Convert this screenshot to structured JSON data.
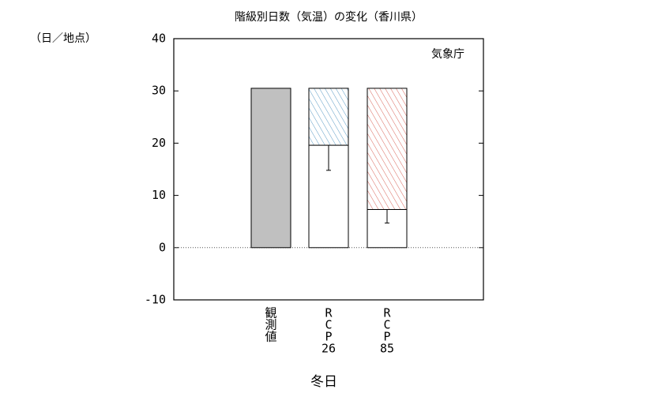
{
  "chart_data": {
    "type": "bar",
    "title": "階級別日数（気温）の変化（香川県）",
    "y_unit": "（日／地点）",
    "source": "気象庁",
    "xlabel": "冬日",
    "categories": [
      [
        "観",
        "測",
        "値"
      ],
      [
        "R",
        "C",
        "P",
        "26"
      ],
      [
        "R",
        "C",
        "P",
        "85"
      ]
    ],
    "series": [
      {
        "color": "#c0c0c0",
        "values": [
          30.5,
          null,
          null
        ]
      },
      {
        "color": "#ffffff",
        "values": [
          null,
          19.6,
          7.3
        ],
        "errors": [
          null,
          4.8,
          2.6
        ]
      },
      {
        "colors": [
          null,
          "#5b9bc4",
          "#d9675c"
        ],
        "hatched": true,
        "values": [
          null,
          10.9,
          23.2
        ]
      }
    ],
    "ylim": [
      -10,
      40
    ],
    "yticks": [
      -10,
      0,
      10,
      20,
      30,
      40
    ]
  }
}
